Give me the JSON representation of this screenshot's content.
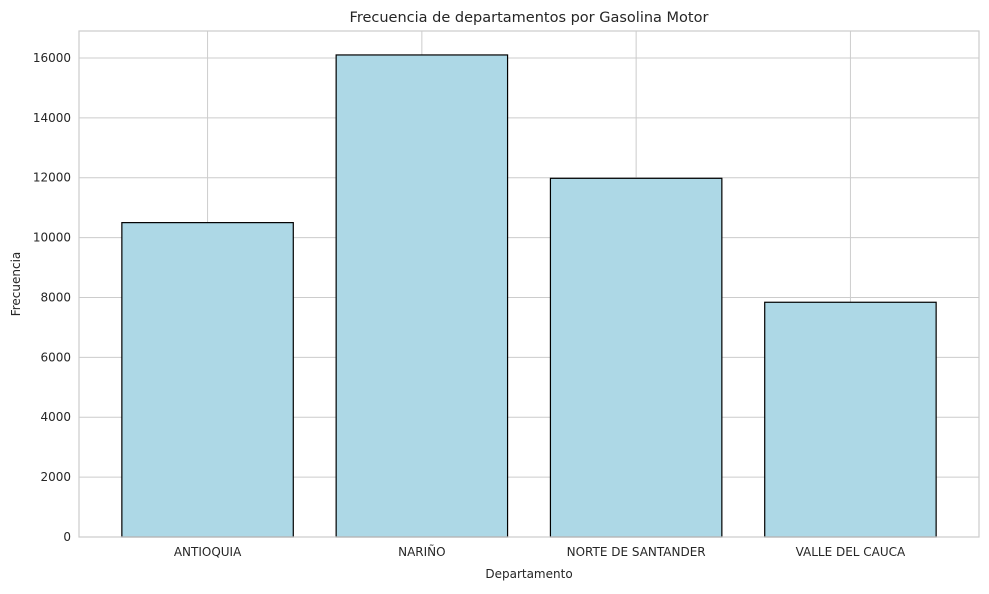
{
  "chart_data": {
    "type": "bar",
    "title": "Frecuencia de departamentos por Gasolina Motor",
    "xlabel": "Departamento",
    "ylabel": "Frecuencia",
    "categories": [
      "ANTIOQUIA",
      "NARIÑO",
      "NORTE DE SANTANDER",
      "VALLE DEL CAUCA"
    ],
    "values": [
      10500,
      16100,
      11980,
      7840
    ],
    "ylim": [
      0,
      16900
    ],
    "yticks": [
      0,
      2000,
      4000,
      6000,
      8000,
      10000,
      12000,
      14000,
      16000
    ],
    "grid": true,
    "bar_color": "#add8e6",
    "bar_edge_color": "#000000",
    "grid_color": "#cccccc"
  }
}
